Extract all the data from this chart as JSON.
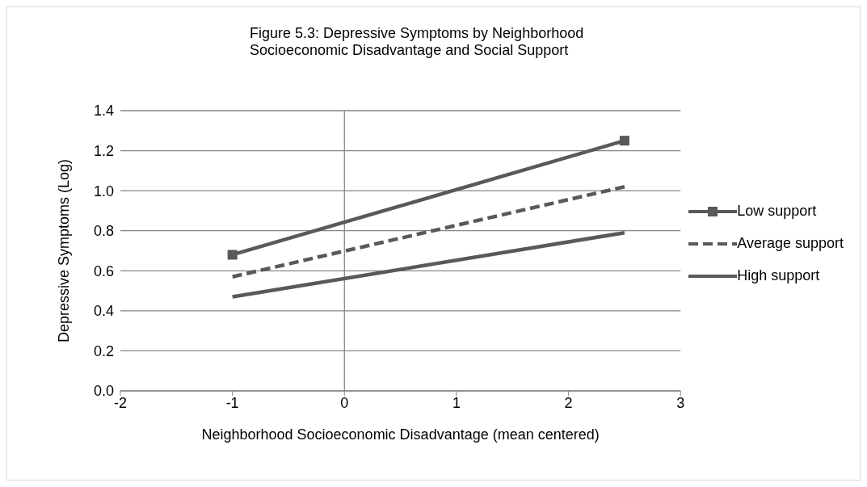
{
  "chart_data": {
    "type": "line",
    "title": "Figure 5.3:   Depressive Symptoms by Neighborhood Socioeconomic Disadvantage and Social Support",
    "xlabel": "Neighborhood Socioeconomic Disadvantage (mean centered)",
    "ylabel": "Depressive Symptoms (Log)",
    "x": [
      -1,
      2.5
    ],
    "xlim": [
      -2,
      3
    ],
    "xticks": [
      -2,
      -1,
      0,
      1,
      2,
      3
    ],
    "ylim": [
      0,
      1.4
    ],
    "yticks": [
      {
        "value": 0,
        "label": "0.0"
      },
      {
        "value": 0.2,
        "label": "0.2"
      },
      {
        "value": 0.4,
        "label": "0.4"
      },
      {
        "value": 0.6,
        "label": "0.6"
      },
      {
        "value": 0.8,
        "label": "0.8"
      },
      {
        "value": 1,
        "label": "1.0"
      },
      {
        "value": 1.2,
        "label": "1.2"
      },
      {
        "value": 1.4,
        "label": "1.4"
      }
    ],
    "grid": "y",
    "legend": "right",
    "ref_lines": [
      {
        "axis": "x",
        "value": 0,
        "color": "#868686"
      }
    ],
    "series": [
      {
        "name": "Low support",
        "color": "#595959",
        "values": [
          0.68,
          1.25
        ],
        "marker": "square",
        "line_style": "solid"
      },
      {
        "name": "Average support",
        "color": "#595959",
        "values": [
          0.57,
          1.02
        ],
        "marker": "none",
        "line_style": "dashed"
      },
      {
        "name": "High support",
        "color": "#595959",
        "values": [
          0.47,
          0.79
        ],
        "marker": "none",
        "line_style": "solid"
      }
    ]
  }
}
